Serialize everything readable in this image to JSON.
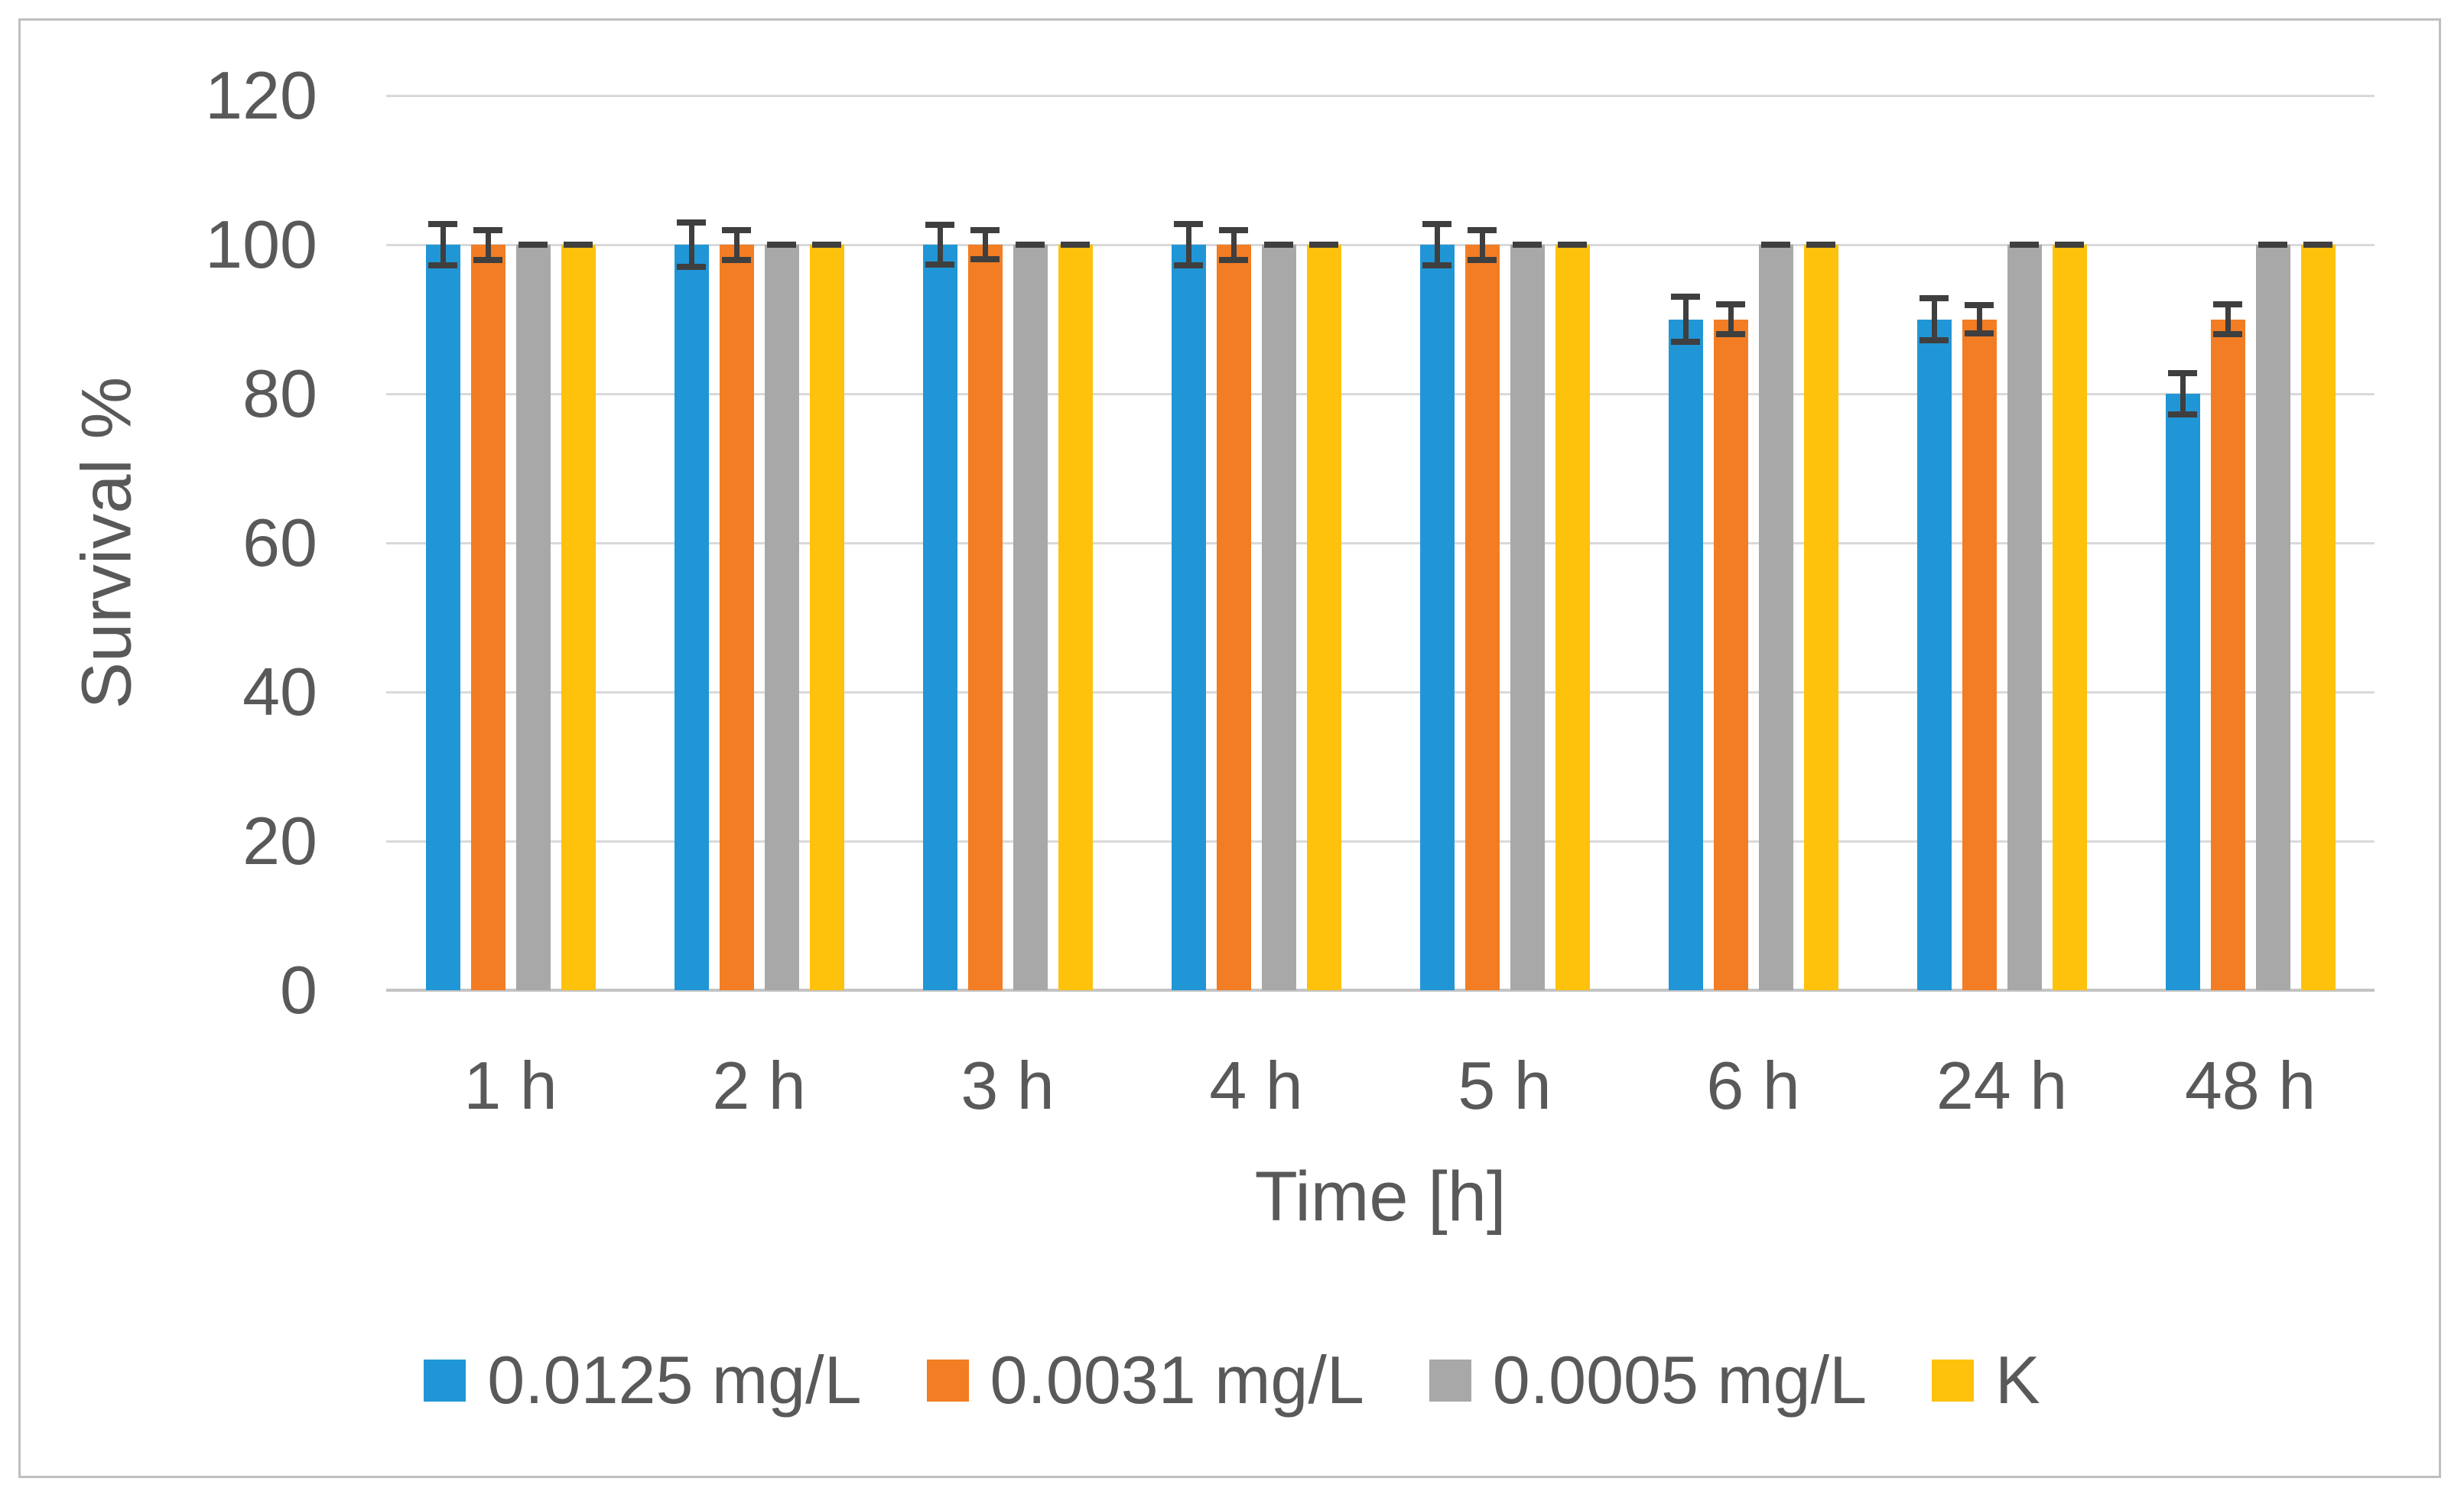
{
  "chart_data": {
    "type": "bar",
    "title": "",
    "categories": [
      "1 h",
      "2 h",
      "3 h",
      "4 h",
      "5 h",
      "6 h",
      "24 h",
      "48 h"
    ],
    "series": [
      {
        "name": "0.0125 mg/L",
        "color": "#2196D6",
        "values": [
          100,
          100,
          100,
          100,
          100,
          90,
          90,
          80
        ],
        "errors": [
          2.8,
          3,
          2.7,
          2.8,
          2.8,
          3,
          2.8,
          2.8
        ]
      },
      {
        "name": "0.0031 mg/L",
        "color": "#F27D24",
        "values": [
          100,
          100,
          100,
          100,
          100,
          90,
          90,
          90
        ],
        "errors": [
          2,
          2,
          1.9,
          2,
          2,
          2,
          1.9,
          2
        ]
      },
      {
        "name": "0.0005 mg/L",
        "color": "#A8A8A8",
        "values": [
          100,
          100,
          100,
          100,
          100,
          100,
          100,
          100
        ],
        "errors": [
          0,
          0,
          0,
          0,
          0,
          0,
          0,
          0
        ]
      },
      {
        "name": "K",
        "color": "#FEC20D",
        "values": [
          100,
          100,
          100,
          100,
          100,
          100,
          100,
          100
        ],
        "errors": [
          0,
          0,
          0,
          0,
          0,
          0,
          0,
          0
        ]
      }
    ],
    "xlabel": "Time [h]",
    "ylabel": "Survival %",
    "ylim": [
      0,
      120
    ],
    "yticks": [
      0,
      20,
      40,
      60,
      80,
      100,
      120
    ],
    "grid": true,
    "legend_position": "bottom"
  },
  "colors": {
    "gridline": "#D9D9D9",
    "axis_line": "#C4C4C4",
    "text": "#595959",
    "error_bar": "#3F3F3F",
    "frame_border": "#BFBFBF",
    "background": "#FFFFFF"
  }
}
